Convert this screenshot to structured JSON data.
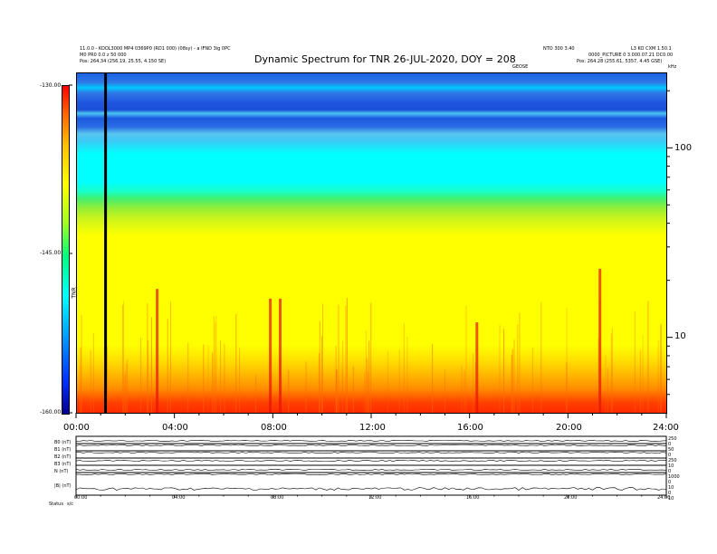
{
  "header": {
    "left_line_1": "11.0.0 - KOOL3000 MP4 0369P0 (RD1 000) (08sy) - a IFND 3ig 0PC",
    "left_line_2": "M0 PR0 0.0 z 50 000",
    "left_line_3": "Pos:    264.34 (256.19, 25.55, 4.150 SE)",
    "right_line_1a": "NTO 300 3.40",
    "right_line_1b": "L3 KO CXM 1.50.1",
    "right_line_2": "0000_PICTURE 0 3.000.07.21 DC0.00",
    "right_line_3": "Pos:    264.28 (255.61, 5357, 4.45 GSE)",
    "top_mid_right": "GEOSE",
    "top_right_corner": "kHz"
  },
  "chart_data": {
    "type": "heatmap",
    "title": "Dynamic Spectrum for TNR 26-JUL-2020, DOY = 208",
    "x_tick_labels": [
      "00:00",
      "04:00",
      "08:00",
      "12:00",
      "16:00",
      "20:00",
      "24:00"
    ],
    "x_range_hours": [
      0,
      24
    ],
    "y_scale": "log",
    "y_tick_labels": [
      "100",
      "10"
    ],
    "y_range_khz": [
      4,
      250
    ],
    "colorbar": {
      "label": "TNR",
      "tick_labels": [
        "-130.00",
        "-145.00",
        "-160.00"
      ],
      "range": [
        -160,
        -130
      ]
    },
    "marker_line_hours": 1.2,
    "bright_features": [
      {
        "t_hours": 3.3,
        "f_khz": 18
      },
      {
        "t_hours": 7.9,
        "f_khz": 16
      },
      {
        "t_hours": 8.3,
        "f_khz": 16
      },
      {
        "t_hours": 16.3,
        "f_khz": 12
      },
      {
        "t_hours": 21.3,
        "f_khz": 23
      }
    ]
  },
  "panel": {
    "left_labels": [
      "B0 (nT)",
      "B1 (nT)",
      "B2 (nT)",
      "B3 (nT)",
      "N (nT)",
      "|B| (nT)"
    ],
    "right_labels": [
      "250",
      "0",
      "50",
      "0",
      "250",
      "10",
      "0",
      "1000",
      "0",
      "10",
      "0",
      "10"
    ],
    "x_tick_labels": [
      "00:00",
      "04:00",
      "08:00",
      "12:00",
      "16:00",
      "20:00",
      "24:00"
    ],
    "bottom_label": "Status",
    "bottom_label_2": "s/c"
  }
}
